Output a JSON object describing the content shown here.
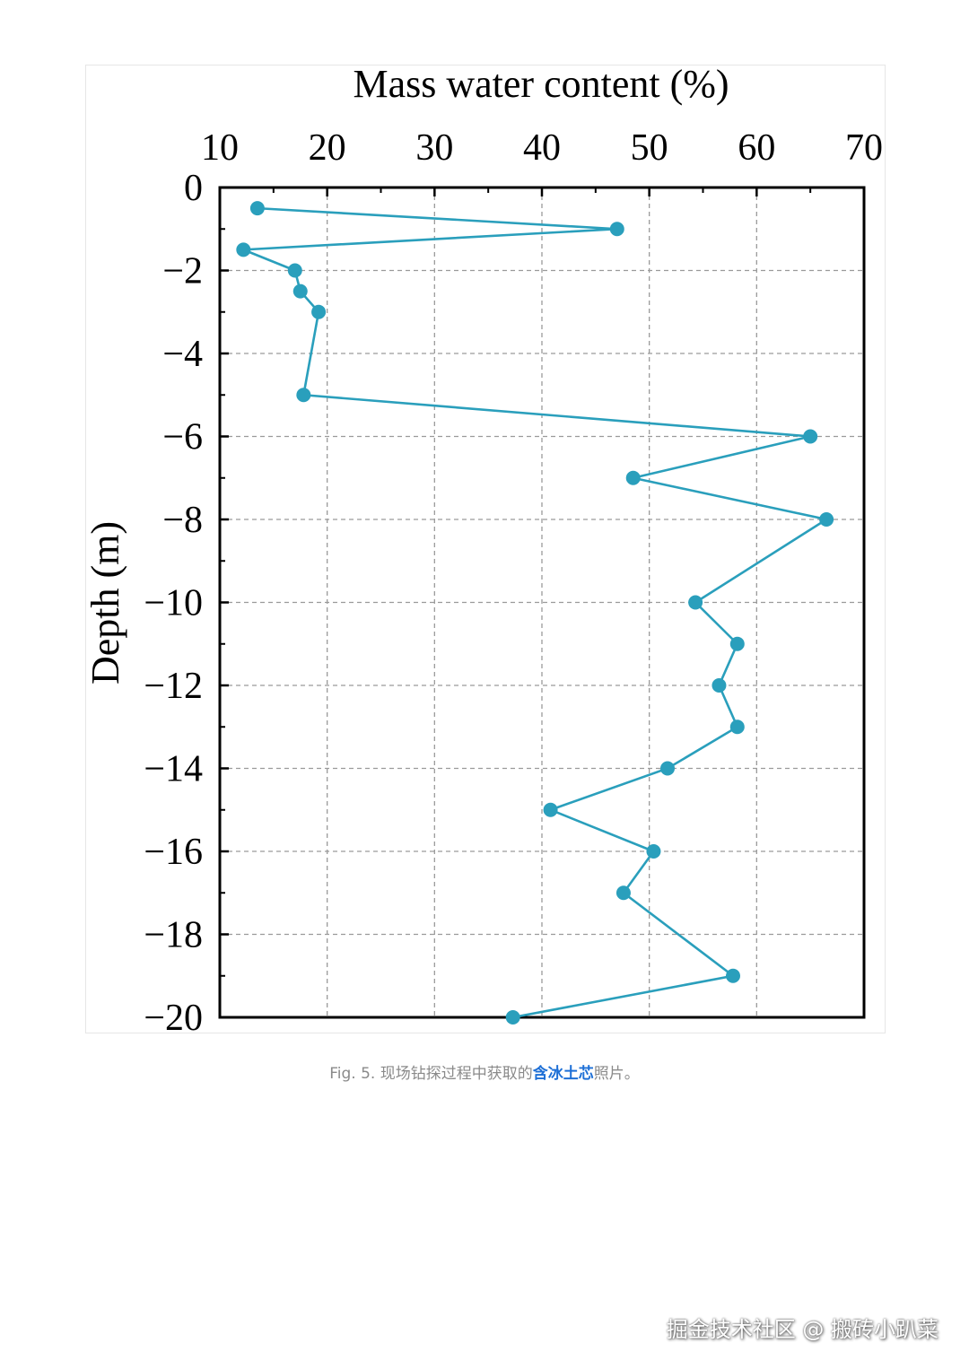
{
  "chart_data": {
    "type": "line",
    "xlabel": "Mass water content (%)",
    "ylabel": "Depth (m)",
    "xlim": [
      10,
      70
    ],
    "ylim": [
      -20,
      0
    ],
    "x_ticks": [
      "10",
      "20",
      "30",
      "40",
      "50",
      "60",
      "70"
    ],
    "y_ticks": [
      "0",
      "−2",
      "−4",
      "−6",
      "−8",
      "−10",
      "−12",
      "−14",
      "−16",
      "−18",
      "−20"
    ],
    "x_axis_position": "top",
    "grid": true,
    "series": [
      {
        "color": "#2a9fbc",
        "points": [
          {
            "x": 13.5,
            "y": -0.5
          },
          {
            "x": 47.0,
            "y": -1.0
          },
          {
            "x": 12.2,
            "y": -1.5
          },
          {
            "x": 17.0,
            "y": -2.0
          },
          {
            "x": 17.5,
            "y": -2.5
          },
          {
            "x": 19.2,
            "y": -3.0
          },
          {
            "x": 17.8,
            "y": -5.0
          },
          {
            "x": 65.0,
            "y": -6.0
          },
          {
            "x": 48.5,
            "y": -7.0
          },
          {
            "x": 66.5,
            "y": -8.0
          },
          {
            "x": 54.3,
            "y": -10.0
          },
          {
            "x": 58.2,
            "y": -11.0
          },
          {
            "x": 56.5,
            "y": -12.0
          },
          {
            "x": 58.2,
            "y": -13.0
          },
          {
            "x": 51.7,
            "y": -14.0
          },
          {
            "x": 40.8,
            "y": -15.0
          },
          {
            "x": 50.4,
            "y": -16.0
          },
          {
            "x": 47.6,
            "y": -17.0
          },
          {
            "x": 57.8,
            "y": -19.0
          },
          {
            "x": 37.3,
            "y": -20.0
          }
        ]
      }
    ]
  },
  "caption": {
    "prefix": "Fig. 5. 现场钻探过程中获取的",
    "highlight": "含冰土芯",
    "suffix": "照片。"
  },
  "watermark": "掘金技术社区 @ 搬砖小趴菜"
}
